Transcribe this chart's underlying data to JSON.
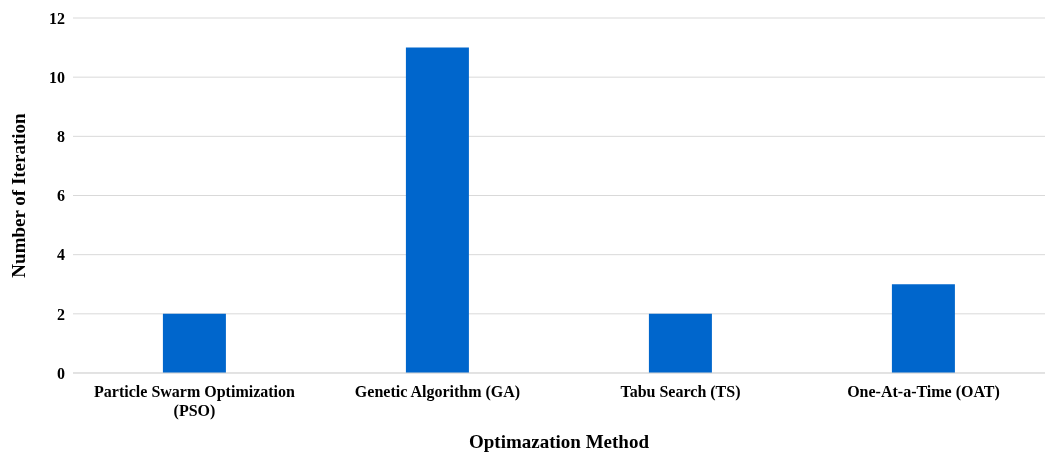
{
  "chart_data": {
    "type": "bar",
    "xlabel": "Optimazation Method",
    "ylabel": "Number of Iteration",
    "categories": [
      "Particle Swarm Optimization (PSO)",
      "Genetic Algorithm (GA)",
      "Tabu Search (TS)",
      "One-At-a-Time (OAT)"
    ],
    "values": [
      2,
      11,
      2,
      3
    ],
    "color": "#0066cc",
    "ylim": [
      0,
      12
    ],
    "yticks": [
      0,
      2,
      4,
      6,
      8,
      10,
      12
    ],
    "grid": "y"
  }
}
